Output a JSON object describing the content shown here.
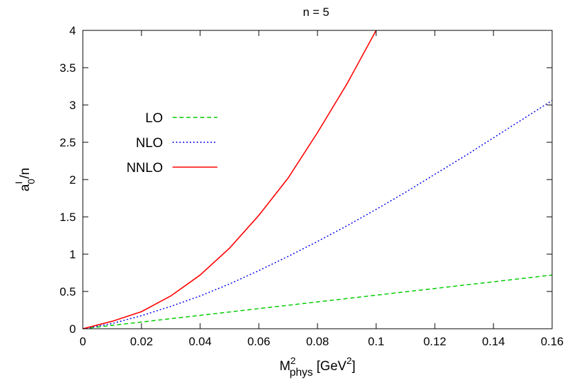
{
  "chart_data": {
    "type": "line",
    "title": "n = 5",
    "xlabel": {
      "base": "M",
      "sup": "2",
      "sub": "phys",
      "unit_open": " [GeV",
      "unit_sup": "2",
      "unit_close": "]"
    },
    "ylabel": {
      "base": "a",
      "sup": "I",
      "sub": "0",
      "tail": "/n"
    },
    "xlim": [
      0,
      0.16
    ],
    "ylim": [
      0,
      4
    ],
    "xticks": [
      0,
      0.02,
      0.04,
      0.06,
      0.08,
      0.1,
      0.12,
      0.14,
      0.16
    ],
    "xtick_labels": [
      "0",
      "0.02",
      "0.04",
      "0.06",
      "0.08",
      "0.1",
      "0.12",
      "0.14",
      "0.16"
    ],
    "yticks": [
      0,
      0.5,
      1,
      1.5,
      2,
      2.5,
      3,
      3.5,
      4
    ],
    "ytick_labels": [
      "0",
      "0.5",
      "1",
      "1.5",
      "2",
      "2.5",
      "3",
      "3.5",
      "4"
    ],
    "grid": false,
    "legend_position": "top-left",
    "x": [
      0,
      0.01,
      0.02,
      0.03,
      0.04,
      0.05,
      0.06,
      0.07,
      0.08,
      0.09,
      0.1,
      0.11,
      0.12,
      0.13,
      0.14,
      0.15,
      0.16
    ],
    "series": [
      {
        "name": "LO",
        "color": "#00cc00",
        "dash": "dashed",
        "values": [
          0,
          0.045,
          0.09,
          0.135,
          0.18,
          0.225,
          0.27,
          0.315,
          0.36,
          0.405,
          0.45,
          0.495,
          0.54,
          0.585,
          0.63,
          0.675,
          0.72
        ]
      },
      {
        "name": "NLO",
        "color": "#0000ee",
        "dash": "dotted",
        "values": [
          0,
          0.07,
          0.175,
          0.3,
          0.44,
          0.6,
          0.78,
          0.97,
          1.17,
          1.38,
          1.6,
          1.83,
          2.07,
          2.31,
          2.56,
          2.81,
          3.06
        ]
      },
      {
        "name": "NNLO",
        "color": "#ff0000",
        "dash": "solid",
        "values": [
          0,
          0.1,
          0.23,
          0.44,
          0.72,
          1.08,
          1.52,
          2.02,
          2.63,
          3.28,
          4.0,
          null,
          null,
          null,
          null,
          null,
          null
        ]
      }
    ]
  }
}
